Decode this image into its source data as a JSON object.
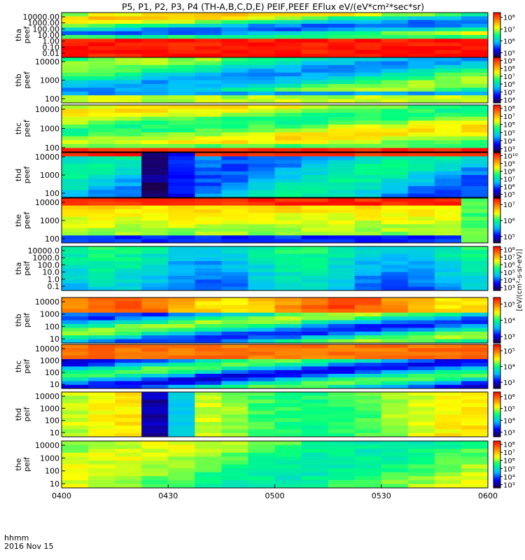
{
  "title": "P5, P1, P2, P3, P4 (TH-A,B,C,D,E) PEIF,PEEF EFlux eV/(eV*cm²*sec*sr)",
  "x_axis": {
    "ticks": [
      "0400",
      "0430",
      "0500",
      "0530",
      "0600"
    ],
    "label_line1": "hhmm",
    "label_line2": "2016 Nov 15"
  },
  "colorbar_label": "[eV/(cm²-s-sr-eV)]",
  "colors": {
    "background": "#ffffff",
    "colormap": [
      "#20003c",
      "#0000ff",
      "#00c0ff",
      "#00ff80",
      "#ffff00",
      "#ff8000",
      "#ff0000"
    ]
  },
  "chart_data": {
    "type": "heatmap",
    "x_range": [
      "0400",
      "0600"
    ],
    "panels": [
      {
        "id": "tha-peef",
        "ylabel": [
          "tha",
          "peef"
        ],
        "yticks": [
          "10000.00",
          "1000.00",
          "100.00",
          "10.00",
          "1.00",
          "0.10",
          "0.01"
        ],
        "cb_ticks": [
          "10⁸",
          "10⁷",
          "10⁶",
          "10⁵"
        ],
        "cb_range_exp": [
          4.6,
          8.4
        ]
      },
      {
        "id": "thb-peef",
        "ylabel": [
          "thb",
          "peef"
        ],
        "yticks": [
          "10000",
          "1000",
          "100"
        ],
        "cb_ticks": [
          "10⁹",
          "10⁸",
          "10⁷",
          "10⁶",
          "10⁵",
          "10⁴"
        ],
        "cb_range_exp": [
          3.6,
          9.4
        ]
      },
      {
        "id": "thc-peef",
        "ylabel": [
          "thc",
          "peef"
        ],
        "yticks": [
          "10000",
          "1000",
          "100"
        ],
        "cb_ticks": [
          "10⁸",
          "10⁷",
          "10⁶",
          "10⁵",
          "10⁴",
          "10³"
        ],
        "cb_range_exp": [
          2.6,
          8.4
        ]
      },
      {
        "id": "thd-peef",
        "ylabel": [
          "thd",
          "peef"
        ],
        "yticks": [
          "10000",
          "1000",
          "100"
        ],
        "cb_ticks": [
          "10¹⁰",
          "10⁹",
          "10⁸",
          "10⁷",
          "10⁶",
          "10⁵"
        ],
        "cb_range_exp": [
          4.6,
          10.4
        ]
      },
      {
        "id": "the-peef",
        "ylabel": [
          "the",
          "peef"
        ],
        "yticks": [
          "10000",
          "1000",
          "100"
        ],
        "cb_ticks": [
          "10⁷",
          "10⁶",
          "10⁵"
        ],
        "cb_range_exp": [
          4.6,
          7.4
        ]
      },
      {
        "id": "tha-peif",
        "ylabel": [
          "tha",
          "peif"
        ],
        "yticks": [
          "10000.0",
          "1000.0",
          "100.0",
          "10.0",
          "1.0",
          "0.1"
        ],
        "cb_ticks": [
          "10⁸",
          "10⁷",
          "10⁶",
          "10⁵",
          "10⁴",
          "10³"
        ],
        "cb_range_exp": [
          2.6,
          8.4
        ]
      },
      {
        "id": "thb-peif",
        "ylabel": [
          "thb",
          "peif"
        ],
        "yticks": [
          "10000",
          "1000",
          "100",
          "10"
        ],
        "cb_ticks": [
          "10⁵",
          "10⁴",
          "10³"
        ],
        "cb_range_exp": [
          2.6,
          5.4
        ]
      },
      {
        "id": "thc-peif",
        "ylabel": [
          "thc",
          "peif"
        ],
        "yticks": [
          "10000",
          "1000",
          "100",
          "10"
        ],
        "cb_ticks": [
          "10⁵",
          "10⁴",
          "10³"
        ],
        "cb_range_exp": [
          2.6,
          5.4
        ]
      },
      {
        "id": "thd-peif",
        "ylabel": [
          "thd",
          "peif"
        ],
        "yticks": [
          "10000",
          "1000",
          "100",
          "10"
        ],
        "cb_ticks": [
          "10⁶",
          "10⁵",
          "10⁴",
          "10³"
        ],
        "cb_range_exp": [
          2.6,
          6.4
        ]
      },
      {
        "id": "the-peif",
        "ylabel": [
          "the",
          "peif"
        ],
        "yticks": [
          "10000",
          "1000",
          "100",
          "10"
        ],
        "cb_ticks": [
          "10⁸",
          "10⁷",
          "10⁶",
          "10⁵",
          "10⁴",
          "10³"
        ],
        "cb_range_exp": [
          2.6,
          8.4
        ]
      }
    ]
  }
}
